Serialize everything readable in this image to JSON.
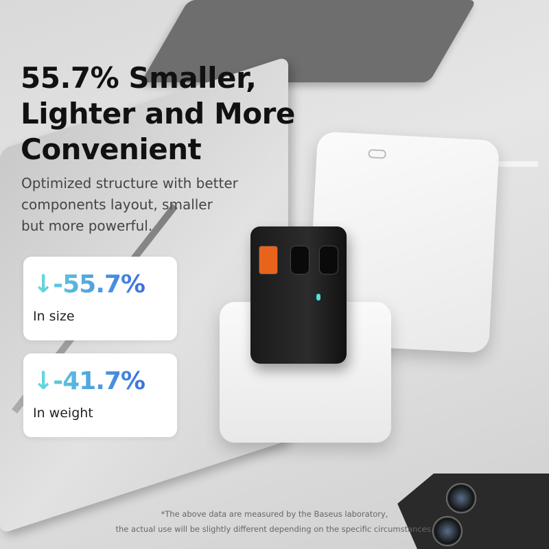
{
  "headline": [
    "55.7% Smaller,",
    "Lighter and More",
    "Convenient"
  ],
  "subtitle": [
    "Optimized structure with better",
    "components layout, smaller",
    "but more powerful."
  ],
  "stats": [
    {
      "icon": "arrow-down-icon",
      "arrow": "↓",
      "value": "-55.7%",
      "label": "In size"
    },
    {
      "icon": "arrow-down-icon",
      "arrow": "↓",
      "value": "-41.7%",
      "label": "In weight"
    }
  ],
  "footnote": [
    "*The above data are measured by the Baseus laboratory,",
    "the actual use will be slightly different depending on the specific circumstances."
  ],
  "colors": {
    "gradient_start": "#66dede",
    "gradient_end": "#3b6fe0",
    "usb_a_port": "#e8641c",
    "led": "#4fe0e0"
  }
}
